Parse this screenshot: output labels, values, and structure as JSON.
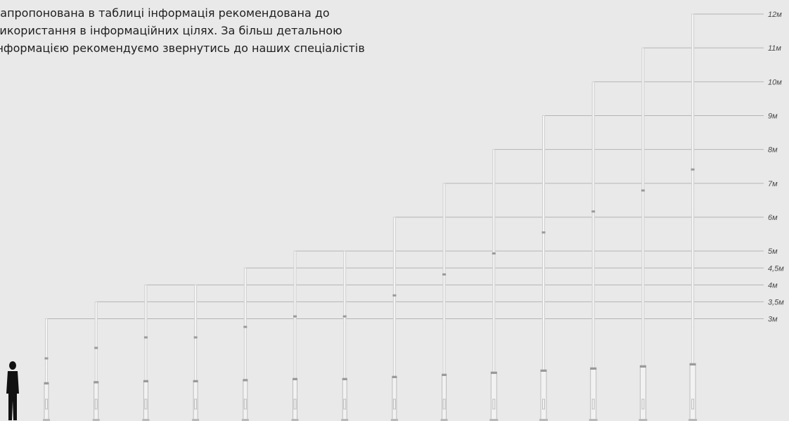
{
  "note": {
    "lines": [
      "Запропонована в таблиці інформація рекомендована до",
      "використання в інформаційних цілях. За більш детальною",
      "інформацією рекомендуємо звернутись до наших спеціалістів"
    ]
  },
  "height_levels": [
    {
      "label": "3м",
      "meters": 3
    },
    {
      "label": "3,5м",
      "meters": 3.5
    },
    {
      "label": "4м",
      "meters": 4
    },
    {
      "label": "4,5м",
      "meters": 4.5
    },
    {
      "label": "5м",
      "meters": 5
    },
    {
      "label": "6м",
      "meters": 6
    },
    {
      "label": "7м",
      "meters": 7
    },
    {
      "label": "8м",
      "meters": 8
    },
    {
      "label": "9м",
      "meters": 9
    },
    {
      "label": "10м",
      "meters": 10
    },
    {
      "label": "11м",
      "meters": 11
    },
    {
      "label": "12м",
      "meters": 12
    }
  ],
  "poles": [
    {
      "height_m": 3
    },
    {
      "height_m": 3.5
    },
    {
      "height_m": 4
    },
    {
      "height_m": 4
    },
    {
      "height_m": 4.5
    },
    {
      "height_m": 5
    },
    {
      "height_m": 5
    },
    {
      "height_m": 6
    },
    {
      "height_m": 7
    },
    {
      "height_m": 8
    },
    {
      "height_m": 9
    },
    {
      "height_m": 10
    },
    {
      "height_m": 11
    },
    {
      "height_m": 12
    }
  ],
  "colors": {
    "background": "#e9e9e9",
    "line": "#b4b4b4",
    "silhouette": "#111111"
  }
}
